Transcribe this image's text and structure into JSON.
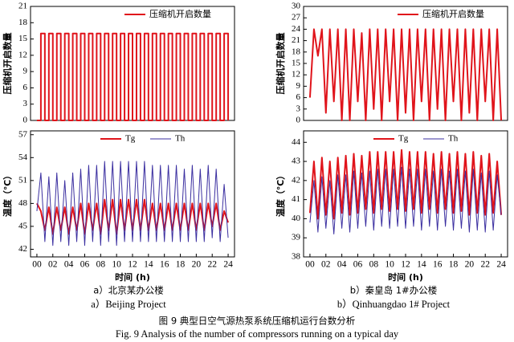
{
  "chart_data": [
    {
      "type": "line",
      "step": true,
      "ylabel": "压缩机开启数量",
      "xlim": [
        -0.8,
        24.8
      ],
      "ylim": [
        0,
        21
      ],
      "yticks": [
        0,
        3,
        6,
        9,
        12,
        15,
        18,
        21
      ],
      "legend": "upper right",
      "x": [
        0,
        0.5,
        1,
        1.5,
        2,
        2.5,
        3,
        3.5,
        4,
        4.5,
        5,
        5.5,
        6,
        6.5,
        7,
        7.5,
        8,
        8.5,
        9,
        9.5,
        10,
        10.5,
        11,
        11.5,
        12,
        12.5,
        13,
        13.5,
        14,
        14.5,
        15,
        15.5,
        16,
        16.5,
        17,
        17.5,
        18,
        18.5,
        19,
        19.5,
        20,
        20.5,
        21,
        21.5,
        22,
        22.5,
        23,
        23.5,
        24
      ],
      "series": [
        {
          "name": "压缩机开启数量",
          "color": "#e0141b",
          "values": [
            0,
            16,
            0,
            16,
            0,
            16,
            0,
            16,
            0,
            16,
            0,
            16,
            0,
            16,
            0,
            16,
            0,
            16,
            0,
            16,
            0,
            16,
            0,
            16,
            0,
            16,
            0,
            16,
            0,
            16,
            0,
            16,
            0,
            16,
            0,
            16,
            0,
            16,
            0,
            16,
            0,
            16,
            0,
            16,
            0,
            16,
            0,
            16,
            0
          ]
        }
      ]
    },
    {
      "type": "line",
      "ylabel": "温度（℃）",
      "xlabel": "时间 (h)",
      "xlim": [
        -0.8,
        24.8
      ],
      "ylim": [
        41,
        57.5
      ],
      "yticks": [
        42,
        45,
        48,
        51,
        54,
        57
      ],
      "legend": "upper right",
      "xticks": [
        {
          "value": 0,
          "label": "00"
        },
        {
          "value": 2,
          "label": "02"
        },
        {
          "value": 4,
          "label": "04"
        },
        {
          "value": 6,
          "label": "06"
        },
        {
          "value": 8,
          "label": "08"
        },
        10,
        12,
        14,
        16,
        18,
        20,
        22,
        24
      ],
      "x": [
        0,
        0.5,
        1,
        1.5,
        2,
        2.5,
        3,
        3.5,
        4,
        4.5,
        5,
        5.5,
        6,
        6.5,
        7,
        7.5,
        8,
        8.5,
        9,
        9.5,
        10,
        10.5,
        11,
        11.5,
        12,
        12.5,
        13,
        13.5,
        14,
        14.5,
        15,
        15.5,
        16,
        16.5,
        17,
        17.5,
        18,
        18.5,
        19,
        19.5,
        20,
        20.5,
        21,
        21.5,
        22,
        22.5,
        23,
        23.5,
        24
      ],
      "series": [
        {
          "name": "Tg",
          "color": "#e0141b",
          "values": [
            48,
            47,
            44.5,
            47.5,
            44,
            47.5,
            44.5,
            47.5,
            44,
            47.5,
            44.5,
            48,
            44,
            48,
            44.5,
            48,
            44,
            48.5,
            44.5,
            48.5,
            44,
            48.5,
            44.5,
            48.5,
            44.5,
            48.5,
            44.5,
            48.5,
            44.5,
            48,
            44.5,
            48,
            44.5,
            48,
            44.5,
            48,
            44.5,
            48,
            44.5,
            48,
            44.5,
            48,
            44.5,
            48,
            45,
            48,
            44.5,
            47,
            45.5
          ]
        },
        {
          "name": "Th",
          "color": "#3b2fa0",
          "values": [
            47,
            52,
            43,
            51.5,
            42.5,
            52,
            43,
            51,
            42.5,
            52,
            43,
            52.5,
            42.5,
            53,
            43,
            53,
            42.5,
            53.5,
            43,
            53.5,
            42.5,
            53.5,
            43,
            53.5,
            43,
            53.5,
            43,
            53.5,
            43,
            53,
            43,
            53,
            43,
            53,
            43,
            53,
            43,
            52.5,
            43,
            53,
            43,
            52.5,
            43,
            53,
            43.5,
            52.5,
            43,
            50.5,
            43.5
          ]
        }
      ]
    },
    {
      "type": "line",
      "ylabel": "压缩机开启数量",
      "xlim": [
        -0.8,
        24.8
      ],
      "ylim": [
        0,
        30
      ],
      "yticks": [
        0,
        3,
        6,
        9,
        12,
        15,
        18,
        21,
        24,
        27,
        30
      ],
      "legend": "upper right",
      "x": [
        0,
        0.5,
        1,
        1.5,
        2,
        2.5,
        3,
        3.5,
        4,
        4.5,
        5,
        5.5,
        6,
        6.5,
        7,
        7.5,
        8,
        8.5,
        9,
        9.5,
        10,
        10.5,
        11,
        11.5,
        12,
        12.5,
        13,
        13.5,
        14,
        14.5,
        15,
        15.5,
        16,
        16.5,
        17,
        17.5,
        18,
        18.5,
        19,
        19.5,
        20,
        20.5,
        21,
        21.5,
        22,
        22.5,
        23,
        23.5,
        24
      ],
      "series": [
        {
          "name": "压缩机开启数量",
          "color": "#e0141b",
          "values": [
            6,
            24,
            17,
            24,
            2,
            24,
            5,
            24,
            0,
            24,
            0,
            24,
            5,
            23,
            0,
            24,
            3,
            24,
            0,
            24,
            5,
            24,
            0,
            24,
            2,
            24,
            0,
            24,
            5,
            24,
            0,
            24,
            3,
            24,
            0,
            24,
            5,
            24,
            0,
            24,
            2,
            24,
            0,
            24,
            5,
            24,
            0,
            24,
            0
          ]
        }
      ]
    },
    {
      "type": "line",
      "ylabel": "温度（℃）",
      "xlabel": "时间 (h)",
      "xlim": [
        -0.8,
        24.8
      ],
      "ylim": [
        38,
        44.6
      ],
      "yticks": [
        38,
        39,
        40,
        41,
        42,
        43,
        44
      ],
      "legend": "upper right",
      "xticks": [
        {
          "value": 0,
          "label": "00"
        },
        {
          "value": 2,
          "label": "02"
        },
        {
          "value": 4,
          "label": "04"
        },
        {
          "value": 6,
          "label": "06"
        },
        {
          "value": 8,
          "label": "08"
        },
        10,
        12,
        14,
        16,
        18,
        20,
        22,
        24
      ],
      "x": [
        0,
        0.5,
        1,
        1.5,
        2,
        2.5,
        3,
        3.5,
        4,
        4.5,
        5,
        5.5,
        6,
        6.5,
        7,
        7.5,
        8,
        8.5,
        9,
        9.5,
        10,
        10.5,
        11,
        11.5,
        12,
        12.5,
        13,
        13.5,
        14,
        14.5,
        15,
        15.5,
        16,
        16.5,
        17,
        17.5,
        18,
        18.5,
        19,
        19.5,
        20,
        20.5,
        21,
        21.5,
        22,
        22.5,
        23,
        23.5,
        24
      ],
      "series": [
        {
          "name": "Tg",
          "color": "#e0141b",
          "values": [
            40.3,
            43,
            40,
            43.2,
            40.2,
            43,
            40,
            43.2,
            40.3,
            43.3,
            40.2,
            43.4,
            40.3,
            43.3,
            40.5,
            43.5,
            40.3,
            43.5,
            40.5,
            43.5,
            40.4,
            43.5,
            40.5,
            43.6,
            40.4,
            43.5,
            40.5,
            43.5,
            40.3,
            43.5,
            40.5,
            43.4,
            40.3,
            43.5,
            40.5,
            43.4,
            40.3,
            43.5,
            40.4,
            43.4,
            40.2,
            43.5,
            40.3,
            43.3,
            40.2,
            43.4,
            40.3,
            43,
            40.2
          ]
        },
        {
          "name": "Th",
          "color": "#3b2fa0",
          "values": [
            39.8,
            42,
            39.3,
            42.2,
            39.5,
            42,
            39.2,
            42.3,
            39.5,
            42.3,
            39.3,
            42.5,
            39.5,
            42.4,
            39.6,
            42.5,
            39.4,
            42.6,
            39.6,
            42.6,
            39.5,
            42.6,
            39.6,
            42.7,
            39.5,
            42.6,
            39.6,
            42.6,
            39.4,
            42.6,
            39.6,
            42.5,
            39.4,
            42.6,
            39.6,
            42.5,
            39.4,
            42.6,
            39.5,
            42.5,
            39.3,
            42.6,
            39.4,
            42.4,
            39.3,
            42.5,
            39.4,
            42.3,
            40.2
          ]
        }
      ]
    }
  ],
  "captions": {
    "a_cn": "a）北京某办公楼",
    "a_en": "a）Beijing Project",
    "b_cn": "b）秦皇岛 1#办公楼",
    "b_en": "b）Qinhuangdao 1# Project",
    "fig_cn": "图 9  典型日空气源热泵系统压缩机运行台数分析",
    "fig_en": "Fig. 9  Analysis of the number of compressors running on a typical day"
  }
}
